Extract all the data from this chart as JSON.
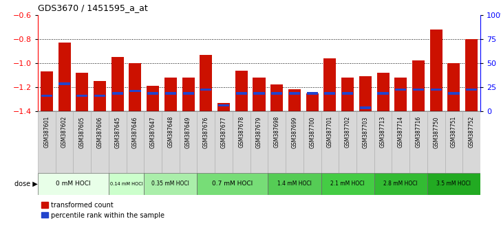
{
  "title": "GDS3670 / 1451595_a_at",
  "samples": [
    "GSM387601",
    "GSM387602",
    "GSM387605",
    "GSM387606",
    "GSM387645",
    "GSM387646",
    "GSM387647",
    "GSM387648",
    "GSM387649",
    "GSM387676",
    "GSM387677",
    "GSM387678",
    "GSM387679",
    "GSM387698",
    "GSM387699",
    "GSM387700",
    "GSM387701",
    "GSM387702",
    "GSM387703",
    "GSM387713",
    "GSM387714",
    "GSM387716",
    "GSM387750",
    "GSM387751",
    "GSM387752"
  ],
  "red_values": [
    -1.07,
    -0.83,
    -1.08,
    -1.15,
    -0.95,
    -1.0,
    -1.19,
    -1.12,
    -1.12,
    -0.93,
    -1.33,
    -1.06,
    -1.12,
    -1.18,
    -1.22,
    -1.25,
    -0.96,
    -1.12,
    -1.11,
    -1.08,
    -1.12,
    -0.98,
    -0.72,
    -1.0,
    -0.8
  ],
  "blue_values": [
    -1.27,
    -1.17,
    -1.27,
    -1.27,
    -1.25,
    -1.23,
    -1.25,
    -1.25,
    -1.25,
    -1.22,
    -1.35,
    -1.25,
    -1.25,
    -1.25,
    -1.25,
    -1.25,
    -1.25,
    -1.25,
    -1.37,
    -1.25,
    -1.22,
    -1.22,
    -1.22,
    -1.25,
    -1.22
  ],
  "dose_groups": [
    {
      "label": "0 mM HOCl",
      "start": 0,
      "end": 4,
      "color": "#e8ffe8"
    },
    {
      "label": "0.14 mM HOCl",
      "start": 4,
      "end": 6,
      "color": "#ccffcc"
    },
    {
      "label": "0.35 mM HOCl",
      "start": 6,
      "end": 9,
      "color": "#aaeeaa"
    },
    {
      "label": "0.7 mM HOCl",
      "start": 9,
      "end": 13,
      "color": "#77dd77"
    },
    {
      "label": "1.4 mM HOCl",
      "start": 13,
      "end": 16,
      "color": "#55cc55"
    },
    {
      "label": "2.1 mM HOCl",
      "start": 16,
      "end": 19,
      "color": "#44cc44"
    },
    {
      "label": "2.8 mM HOCl",
      "start": 19,
      "end": 22,
      "color": "#33bb33"
    },
    {
      "label": "3.5 mM HOCl",
      "start": 22,
      "end": 25,
      "color": "#22aa22"
    }
  ],
  "ylim_left": [
    -1.4,
    -0.6
  ],
  "ylim_right": [
    0,
    100
  ],
  "y_ticks_left": [
    -1.4,
    -1.2,
    -1.0,
    -0.8,
    -0.6
  ],
  "y_ticks_right": [
    0,
    25,
    50,
    75,
    100
  ],
  "bar_color": "#cc1100",
  "blue_color": "#2244cc",
  "label_bg": "#d8d8d8",
  "bg_color": "#ffffff",
  "dose_label_color": "#000000"
}
